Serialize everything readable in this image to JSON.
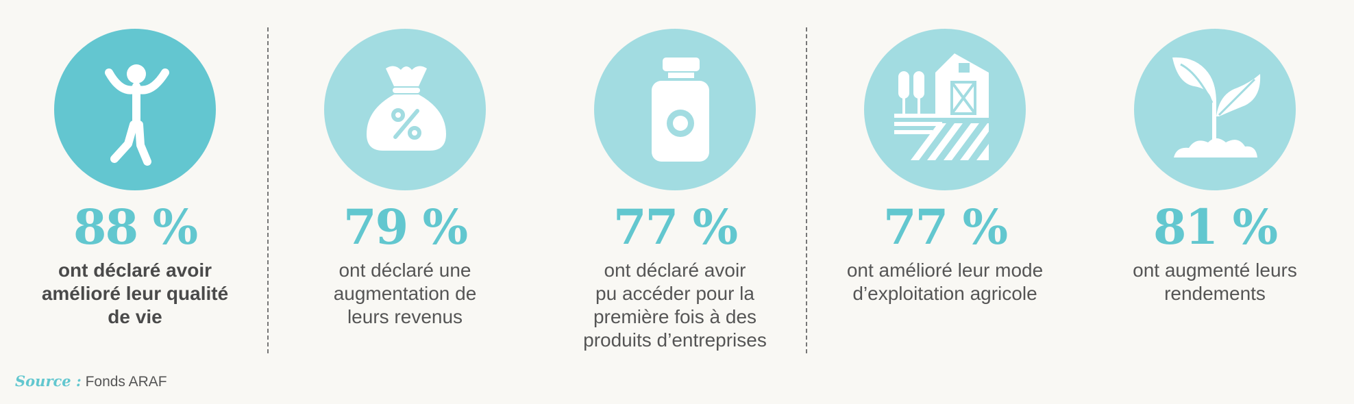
{
  "colors": {
    "accent_dark": "#63c6d0",
    "accent_light": "#a2dce1",
    "percent_text": "#62c7cf",
    "body_text": "#555555",
    "background": "#f9f8f4"
  },
  "stats": [
    {
      "icon": "person-jumping-icon",
      "percent": "88 %",
      "description": "ont déclaré avoir\namélioré leur qualité\nde vie"
    },
    {
      "icon": "money-bag-percent-icon",
      "percent": "79 %",
      "description": "ont déclaré une\naugmentation de\nleurs revenus"
    },
    {
      "icon": "bottle-icon",
      "percent": "77 %",
      "description": "ont déclaré avoir\npu accéder pour la\npremière fois à des\nproduits d’entreprises"
    },
    {
      "icon": "farm-barn-icon",
      "percent": "77 %",
      "description": "ont amélioré leur mode\nd’exploitation agricole"
    },
    {
      "icon": "sprout-icon",
      "percent": "81 %",
      "description": "ont augmenté leurs\nrendements"
    }
  ],
  "source": {
    "label": "Source :",
    "value": "Fonds ARAF"
  }
}
